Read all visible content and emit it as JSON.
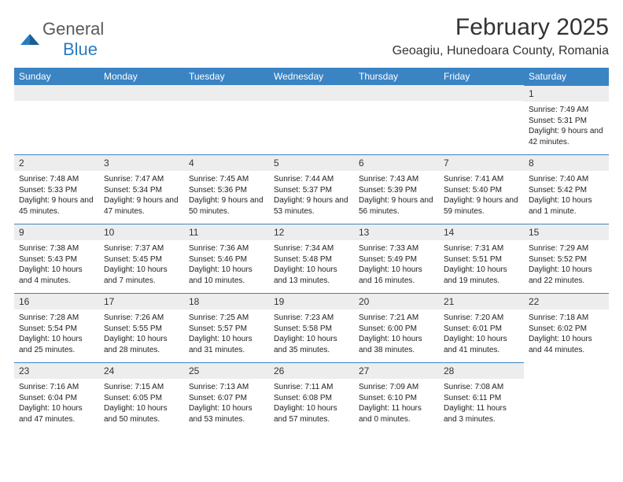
{
  "brand": {
    "name1": "General",
    "name2": "Blue"
  },
  "title": "February 2025",
  "location": "Geoagiu, Hunedoara County, Romania",
  "colors": {
    "header_bg": "#3b84c4",
    "header_text": "#ffffff",
    "daynum_bg": "#ededed",
    "text": "#222222",
    "rule": "#3b84c4"
  },
  "day_headers": [
    "Sunday",
    "Monday",
    "Tuesday",
    "Wednesday",
    "Thursday",
    "Friday",
    "Saturday"
  ],
  "weeks": [
    [
      {
        "n": "",
        "sr": "",
        "ss": "",
        "dl": ""
      },
      {
        "n": "",
        "sr": "",
        "ss": "",
        "dl": ""
      },
      {
        "n": "",
        "sr": "",
        "ss": "",
        "dl": ""
      },
      {
        "n": "",
        "sr": "",
        "ss": "",
        "dl": ""
      },
      {
        "n": "",
        "sr": "",
        "ss": "",
        "dl": ""
      },
      {
        "n": "",
        "sr": "",
        "ss": "",
        "dl": ""
      },
      {
        "n": "1",
        "sr": "Sunrise: 7:49 AM",
        "ss": "Sunset: 5:31 PM",
        "dl": "Daylight: 9 hours and 42 minutes."
      }
    ],
    [
      {
        "n": "2",
        "sr": "Sunrise: 7:48 AM",
        "ss": "Sunset: 5:33 PM",
        "dl": "Daylight: 9 hours and 45 minutes."
      },
      {
        "n": "3",
        "sr": "Sunrise: 7:47 AM",
        "ss": "Sunset: 5:34 PM",
        "dl": "Daylight: 9 hours and 47 minutes."
      },
      {
        "n": "4",
        "sr": "Sunrise: 7:45 AM",
        "ss": "Sunset: 5:36 PM",
        "dl": "Daylight: 9 hours and 50 minutes."
      },
      {
        "n": "5",
        "sr": "Sunrise: 7:44 AM",
        "ss": "Sunset: 5:37 PM",
        "dl": "Daylight: 9 hours and 53 minutes."
      },
      {
        "n": "6",
        "sr": "Sunrise: 7:43 AM",
        "ss": "Sunset: 5:39 PM",
        "dl": "Daylight: 9 hours and 56 minutes."
      },
      {
        "n": "7",
        "sr": "Sunrise: 7:41 AM",
        "ss": "Sunset: 5:40 PM",
        "dl": "Daylight: 9 hours and 59 minutes."
      },
      {
        "n": "8",
        "sr": "Sunrise: 7:40 AM",
        "ss": "Sunset: 5:42 PM",
        "dl": "Daylight: 10 hours and 1 minute."
      }
    ],
    [
      {
        "n": "9",
        "sr": "Sunrise: 7:38 AM",
        "ss": "Sunset: 5:43 PM",
        "dl": "Daylight: 10 hours and 4 minutes."
      },
      {
        "n": "10",
        "sr": "Sunrise: 7:37 AM",
        "ss": "Sunset: 5:45 PM",
        "dl": "Daylight: 10 hours and 7 minutes."
      },
      {
        "n": "11",
        "sr": "Sunrise: 7:36 AM",
        "ss": "Sunset: 5:46 PM",
        "dl": "Daylight: 10 hours and 10 minutes."
      },
      {
        "n": "12",
        "sr": "Sunrise: 7:34 AM",
        "ss": "Sunset: 5:48 PM",
        "dl": "Daylight: 10 hours and 13 minutes."
      },
      {
        "n": "13",
        "sr": "Sunrise: 7:33 AM",
        "ss": "Sunset: 5:49 PM",
        "dl": "Daylight: 10 hours and 16 minutes."
      },
      {
        "n": "14",
        "sr": "Sunrise: 7:31 AM",
        "ss": "Sunset: 5:51 PM",
        "dl": "Daylight: 10 hours and 19 minutes."
      },
      {
        "n": "15",
        "sr": "Sunrise: 7:29 AM",
        "ss": "Sunset: 5:52 PM",
        "dl": "Daylight: 10 hours and 22 minutes."
      }
    ],
    [
      {
        "n": "16",
        "sr": "Sunrise: 7:28 AM",
        "ss": "Sunset: 5:54 PM",
        "dl": "Daylight: 10 hours and 25 minutes."
      },
      {
        "n": "17",
        "sr": "Sunrise: 7:26 AM",
        "ss": "Sunset: 5:55 PM",
        "dl": "Daylight: 10 hours and 28 minutes."
      },
      {
        "n": "18",
        "sr": "Sunrise: 7:25 AM",
        "ss": "Sunset: 5:57 PM",
        "dl": "Daylight: 10 hours and 31 minutes."
      },
      {
        "n": "19",
        "sr": "Sunrise: 7:23 AM",
        "ss": "Sunset: 5:58 PM",
        "dl": "Daylight: 10 hours and 35 minutes."
      },
      {
        "n": "20",
        "sr": "Sunrise: 7:21 AM",
        "ss": "Sunset: 6:00 PM",
        "dl": "Daylight: 10 hours and 38 minutes."
      },
      {
        "n": "21",
        "sr": "Sunrise: 7:20 AM",
        "ss": "Sunset: 6:01 PM",
        "dl": "Daylight: 10 hours and 41 minutes."
      },
      {
        "n": "22",
        "sr": "Sunrise: 7:18 AM",
        "ss": "Sunset: 6:02 PM",
        "dl": "Daylight: 10 hours and 44 minutes."
      }
    ],
    [
      {
        "n": "23",
        "sr": "Sunrise: 7:16 AM",
        "ss": "Sunset: 6:04 PM",
        "dl": "Daylight: 10 hours and 47 minutes."
      },
      {
        "n": "24",
        "sr": "Sunrise: 7:15 AM",
        "ss": "Sunset: 6:05 PM",
        "dl": "Daylight: 10 hours and 50 minutes."
      },
      {
        "n": "25",
        "sr": "Sunrise: 7:13 AM",
        "ss": "Sunset: 6:07 PM",
        "dl": "Daylight: 10 hours and 53 minutes."
      },
      {
        "n": "26",
        "sr": "Sunrise: 7:11 AM",
        "ss": "Sunset: 6:08 PM",
        "dl": "Daylight: 10 hours and 57 minutes."
      },
      {
        "n": "27",
        "sr": "Sunrise: 7:09 AM",
        "ss": "Sunset: 6:10 PM",
        "dl": "Daylight: 11 hours and 0 minutes."
      },
      {
        "n": "28",
        "sr": "Sunrise: 7:08 AM",
        "ss": "Sunset: 6:11 PM",
        "dl": "Daylight: 11 hours and 3 minutes."
      },
      {
        "n": "",
        "sr": "",
        "ss": "",
        "dl": ""
      }
    ]
  ]
}
